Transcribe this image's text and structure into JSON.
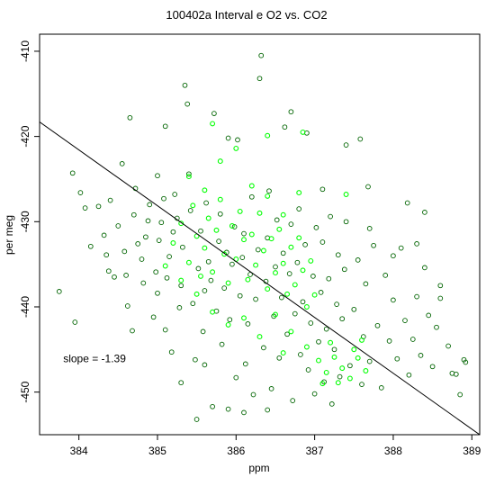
{
  "chart_data": {
    "type": "scatter",
    "title": "100402a   Interval e O2 vs. CO2",
    "xlabel": "ppm",
    "ylabel": "per meg",
    "xlim": [
      383.5,
      389.1
    ],
    "ylim": [
      -455,
      -408
    ],
    "xticks": [
      384,
      385,
      386,
      387,
      388,
      389
    ],
    "yticks": [
      -410,
      -420,
      -430,
      -440,
      -450
    ],
    "xtick_labels": [
      "384",
      "385",
      "386",
      "387",
      "388",
      "389"
    ],
    "ytick_labels": [
      "-410",
      "-420",
      "-430",
      "-440",
      "-450"
    ],
    "grid": false,
    "marker": "open-circle",
    "annotation": {
      "text": "slope =  -1.39",
      "x": 383.8,
      "y": -446.5
    },
    "regression": {
      "slope": -1.39,
      "x": [
        383.5,
        389.1
      ],
      "y": [
        -418.3,
        -455.0
      ]
    },
    "colors": {
      "dark_points": "#006400",
      "light_points": "#00ff00",
      "line": "#000000",
      "axes": "#000000"
    },
    "series": [
      {
        "color": "#006400",
        "points": [
          [
            383.75,
            -438.2
          ],
          [
            383.95,
            -441.8
          ],
          [
            383.92,
            -424.3
          ],
          [
            384.02,
            -426.6
          ],
          [
            384.08,
            -428.4
          ],
          [
            384.25,
            -428.2
          ],
          [
            384.32,
            -431.6
          ],
          [
            384.35,
            -433.9
          ],
          [
            384.38,
            -435.8
          ],
          [
            384.45,
            -436.5
          ],
          [
            384.5,
            -430.5
          ],
          [
            384.55,
            -423.2
          ],
          [
            384.58,
            -433.5
          ],
          [
            384.6,
            -436.3
          ],
          [
            384.62,
            -439.9
          ],
          [
            384.65,
            -417.8
          ],
          [
            384.7,
            -429.2
          ],
          [
            384.72,
            -426.1
          ],
          [
            384.75,
            -432.6
          ],
          [
            384.8,
            -434.4
          ],
          [
            384.82,
            -437.2
          ],
          [
            384.85,
            -431.8
          ],
          [
            384.88,
            -429.9
          ],
          [
            384.9,
            -428.0
          ],
          [
            384.95,
            -441.2
          ],
          [
            384.98,
            -435.9
          ],
          [
            385.0,
            -438.4
          ],
          [
            385.02,
            -432.2
          ],
          [
            385.05,
            -430.1
          ],
          [
            385.08,
            -427.3
          ],
          [
            385.1,
            -442.7
          ],
          [
            385.12,
            -436.6
          ],
          [
            385.15,
            -434.1
          ],
          [
            385.18,
            -445.3
          ],
          [
            385.2,
            -431.2
          ],
          [
            385.22,
            -426.8
          ],
          [
            385.25,
            -429.6
          ],
          [
            385.28,
            -440.1
          ],
          [
            385.3,
            -437.5
          ],
          [
            385.32,
            -433.0
          ],
          [
            385.35,
            -414.0
          ],
          [
            385.38,
            -416.2
          ],
          [
            385.4,
            -424.4
          ],
          [
            385.42,
            -428.7
          ],
          [
            385.45,
            -439.6
          ],
          [
            385.48,
            -446.2
          ],
          [
            385.5,
            -453.2
          ],
          [
            385.52,
            -435.5
          ],
          [
            385.55,
            -431.1
          ],
          [
            385.58,
            -442.9
          ],
          [
            385.6,
            -438.1
          ],
          [
            385.62,
            -427.8
          ],
          [
            385.65,
            -434.7
          ],
          [
            385.68,
            -436.9
          ],
          [
            385.7,
            -451.7
          ],
          [
            385.72,
            -417.3
          ],
          [
            385.75,
            -440.5
          ],
          [
            385.78,
            -432.3
          ],
          [
            385.8,
            -429.1
          ],
          [
            385.82,
            -444.4
          ],
          [
            385.85,
            -437.8
          ],
          [
            385.88,
            -433.6
          ],
          [
            385.9,
            -420.2
          ],
          [
            385.92,
            -441.5
          ],
          [
            385.95,
            -435.0
          ],
          [
            385.98,
            -430.6
          ],
          [
            386.0,
            -448.3
          ],
          [
            386.02,
            -420.4
          ],
          [
            386.05,
            -438.7
          ],
          [
            386.08,
            -434.2
          ],
          [
            386.1,
            -431.4
          ],
          [
            386.12,
            -446.7
          ],
          [
            386.15,
            -442.0
          ],
          [
            386.18,
            -436.2
          ],
          [
            386.2,
            -427.1
          ],
          [
            386.22,
            -450.3
          ],
          [
            386.25,
            -439.1
          ],
          [
            386.28,
            -433.3
          ],
          [
            386.3,
            -413.2
          ],
          [
            386.32,
            -410.5
          ],
          [
            386.35,
            -444.8
          ],
          [
            386.38,
            -437.0
          ],
          [
            386.4,
            -431.9
          ],
          [
            386.42,
            -426.4
          ],
          [
            386.45,
            -449.6
          ],
          [
            386.48,
            -441.1
          ],
          [
            386.5,
            -435.3
          ],
          [
            386.52,
            -429.8
          ],
          [
            386.55,
            -446.0
          ],
          [
            386.58,
            -438.9
          ],
          [
            386.6,
            -433.7
          ],
          [
            386.62,
            -418.9
          ],
          [
            386.65,
            -443.2
          ],
          [
            386.68,
            -436.1
          ],
          [
            386.7,
            -430.3
          ],
          [
            386.72,
            -451.0
          ],
          [
            386.75,
            -440.8
          ],
          [
            386.78,
            -434.8
          ],
          [
            386.8,
            -428.5
          ],
          [
            386.82,
            -445.6
          ],
          [
            386.85,
            -439.4
          ],
          [
            386.88,
            -432.7
          ],
          [
            386.9,
            -419.6
          ],
          [
            386.92,
            -447.4
          ],
          [
            386.95,
            -441.9
          ],
          [
            386.98,
            -436.4
          ],
          [
            387.0,
            -450.2
          ],
          [
            387.02,
            -430.7
          ],
          [
            387.05,
            -444.1
          ],
          [
            387.08,
            -438.3
          ],
          [
            387.1,
            -432.4
          ],
          [
            387.12,
            -448.8
          ],
          [
            387.15,
            -442.6
          ],
          [
            387.18,
            -436.7
          ],
          [
            387.2,
            -429.4
          ],
          [
            387.22,
            -451.4
          ],
          [
            387.25,
            -445.0
          ],
          [
            387.28,
            -439.7
          ],
          [
            387.3,
            -433.9
          ],
          [
            387.32,
            -448.2
          ],
          [
            387.35,
            -441.4
          ],
          [
            387.38,
            -435.6
          ],
          [
            387.4,
            -430.0
          ],
          [
            387.45,
            -446.9
          ],
          [
            387.5,
            -440.3
          ],
          [
            387.55,
            -434.5
          ],
          [
            387.58,
            -420.3
          ],
          [
            387.6,
            -449.1
          ],
          [
            387.62,
            -443.5
          ],
          [
            387.65,
            -437.3
          ],
          [
            387.68,
            -425.9
          ],
          [
            387.7,
            -446.4
          ],
          [
            387.75,
            -432.8
          ],
          [
            387.8,
            -442.2
          ],
          [
            387.85,
            -449.5
          ],
          [
            387.9,
            -436.3
          ],
          [
            387.95,
            -444.0
          ],
          [
            388.0,
            -439.2
          ],
          [
            388.05,
            -446.1
          ],
          [
            388.1,
            -433.1
          ],
          [
            388.15,
            -441.6
          ],
          [
            388.18,
            -427.8
          ],
          [
            388.2,
            -448.0
          ],
          [
            388.25,
            -443.8
          ],
          [
            388.3,
            -438.8
          ],
          [
            388.35,
            -445.7
          ],
          [
            388.4,
            -435.4
          ],
          [
            388.45,
            -441.0
          ],
          [
            388.5,
            -447.0
          ],
          [
            388.55,
            -442.4
          ],
          [
            388.6,
            -439.0
          ],
          [
            388.7,
            -444.6
          ],
          [
            388.75,
            -447.8
          ],
          [
            388.8,
            -447.9
          ],
          [
            388.85,
            -450.3
          ],
          [
            388.9,
            -446.2
          ],
          [
            388.92,
            -446.5
          ],
          [
            384.15,
            -432.9
          ],
          [
            384.4,
            -427.5
          ],
          [
            384.68,
            -442.8
          ],
          [
            385.0,
            -424.6
          ],
          [
            385.1,
            -418.8
          ],
          [
            385.3,
            -448.9
          ],
          [
            385.6,
            -446.8
          ],
          [
            385.9,
            -452.0
          ],
          [
            386.1,
            -452.4
          ],
          [
            386.4,
            -452.1
          ],
          [
            386.7,
            -417.1
          ],
          [
            387.1,
            -426.2
          ],
          [
            387.4,
            -421.0
          ],
          [
            387.7,
            -430.8
          ],
          [
            388.0,
            -434.0
          ],
          [
            388.3,
            -432.6
          ],
          [
            388.6,
            -437.5
          ],
          [
            388.4,
            -428.9
          ]
        ]
      },
      {
        "color": "#00ff00",
        "points": [
          [
            385.2,
            -432.5
          ],
          [
            385.3,
            -430.2
          ],
          [
            385.4,
            -434.8
          ],
          [
            385.45,
            -428.1
          ],
          [
            385.5,
            -431.7
          ],
          [
            385.55,
            -436.4
          ],
          [
            385.6,
            -433.1
          ],
          [
            385.65,
            -429.6
          ],
          [
            385.7,
            -435.9
          ],
          [
            385.75,
            -431.0
          ],
          [
            385.8,
            -427.4
          ],
          [
            385.85,
            -433.8
          ],
          [
            385.9,
            -437.2
          ],
          [
            385.95,
            -430.5
          ],
          [
            386.0,
            -434.4
          ],
          [
            386.05,
            -428.8
          ],
          [
            386.1,
            -432.1
          ],
          [
            386.15,
            -436.8
          ],
          [
            386.2,
            -431.5
          ],
          [
            386.25,
            -435.1
          ],
          [
            386.3,
            -429.0
          ],
          [
            386.35,
            -433.4
          ],
          [
            386.4,
            -437.9
          ],
          [
            386.45,
            -432.0
          ],
          [
            386.5,
            -436.0
          ],
          [
            386.55,
            -430.9
          ],
          [
            386.6,
            -434.9
          ],
          [
            386.65,
            -438.5
          ],
          [
            386.7,
            -433.0
          ],
          [
            386.75,
            -437.4
          ],
          [
            386.8,
            -431.9
          ],
          [
            386.85,
            -435.7
          ],
          [
            386.9,
            -440.0
          ],
          [
            386.95,
            -434.6
          ],
          [
            387.0,
            -438.6
          ],
          [
            385.5,
            -438.5
          ],
          [
            385.7,
            -440.6
          ],
          [
            385.9,
            -442.1
          ],
          [
            386.1,
            -441.3
          ],
          [
            386.3,
            -443.5
          ],
          [
            386.5,
            -440.9
          ],
          [
            386.7,
            -442.9
          ],
          [
            386.9,
            -444.7
          ],
          [
            387.05,
            -446.3
          ],
          [
            387.15,
            -447.7
          ],
          [
            387.25,
            -445.9
          ],
          [
            387.35,
            -447.2
          ],
          [
            387.45,
            -448.4
          ],
          [
            387.55,
            -446.0
          ],
          [
            387.65,
            -447.5
          ],
          [
            387.1,
            -449.0
          ],
          [
            387.3,
            -448.9
          ],
          [
            387.5,
            -445.0
          ],
          [
            387.6,
            -443.9
          ],
          [
            387.2,
            -444.2
          ],
          [
            385.8,
            -422.9
          ],
          [
            386.0,
            -421.4
          ],
          [
            385.6,
            -426.3
          ],
          [
            385.4,
            -424.7
          ],
          [
            386.2,
            -425.8
          ],
          [
            386.4,
            -427.0
          ],
          [
            386.6,
            -429.2
          ],
          [
            386.8,
            -426.6
          ],
          [
            385.3,
            -436.9
          ],
          [
            385.1,
            -435.2
          ],
          [
            386.85,
            -419.5
          ],
          [
            386.4,
            -419.9
          ],
          [
            385.7,
            -418.5
          ],
          [
            387.4,
            -426.8
          ],
          [
            386.6,
            -445.4
          ]
        ]
      }
    ]
  }
}
